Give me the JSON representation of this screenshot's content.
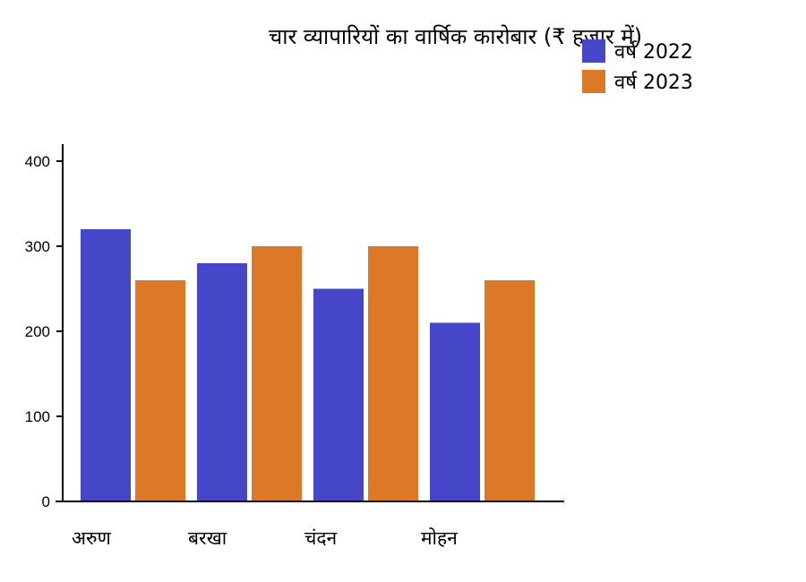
{
  "chart_data": {
    "type": "bar",
    "title": "चार व्यापारियों का वार्षिक कारोबार (₹ हजार में)",
    "xlabel": "",
    "ylabel": "",
    "categories": [
      "अरुण",
      "बरखा",
      "चंदन",
      "मोहन"
    ],
    "series": [
      {
        "name": "वर्ष 2022",
        "values": [
          320,
          280,
          250,
          210
        ],
        "color": "#4646c8"
      },
      {
        "name": "वर्ष 2023",
        "values": [
          260,
          300,
          300,
          260
        ],
        "color": "#dc7828"
      }
    ],
    "ylim": [
      0,
      420
    ],
    "yticks": [
      0,
      100,
      200,
      300,
      400
    ],
    "grid": false,
    "legend_position": "top-right"
  }
}
